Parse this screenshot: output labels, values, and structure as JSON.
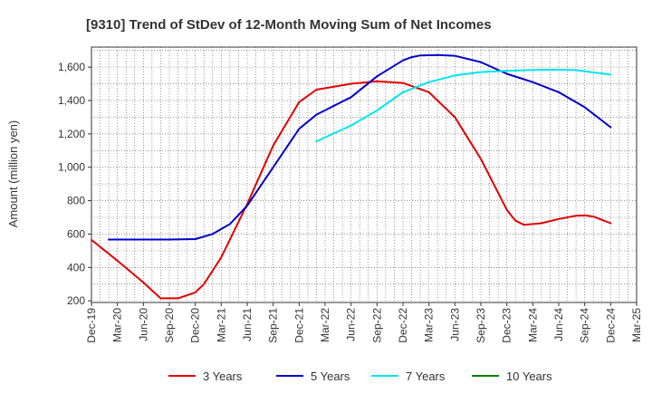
{
  "chart_data": {
    "type": "line",
    "title": "[9310]  Trend of StDev of 12-Month Moving Sum of Net Incomes",
    "ylabel": "Amount (million yen)",
    "xlabel": "",
    "ylim": [
      190,
      1720
    ],
    "yticks": [
      200,
      400,
      600,
      800,
      1000,
      1200,
      1400,
      1600
    ],
    "ytick_labels": [
      "200",
      "400",
      "600",
      "800",
      "1,000",
      "1,200",
      "1,400",
      "1,600"
    ],
    "x_tick_labels": [
      "Dec-19",
      "Mar-20",
      "Jun-20",
      "Sep-20",
      "Dec-20",
      "Mar-21",
      "Jun-21",
      "Sep-21",
      "Dec-21",
      "Mar-22",
      "Jun-22",
      "Sep-22",
      "Dec-22",
      "Mar-23",
      "Jun-23",
      "Sep-23",
      "Dec-23",
      "Mar-24",
      "Jun-24",
      "Sep-24",
      "Dec-24",
      "Mar-25"
    ],
    "grid": true,
    "legend_position": "bottom",
    "series": [
      {
        "name": "3 Years",
        "color": "#e00000",
        "points": [
          [
            "Dec-19",
            565
          ],
          [
            "Mar-20",
            440
          ],
          [
            "Jun-20",
            310
          ],
          [
            "Aug-20",
            215
          ],
          [
            "Oct-20",
            215
          ],
          [
            "Dec-20",
            250
          ],
          [
            "Jan-21",
            300
          ],
          [
            "Mar-21",
            460
          ],
          [
            "Jun-21",
            780
          ],
          [
            "Sep-21",
            1130
          ],
          [
            "Dec-21",
            1390
          ],
          [
            "Feb-22",
            1465
          ],
          [
            "Jun-22",
            1500
          ],
          [
            "Sep-22",
            1515
          ],
          [
            "Dec-22",
            1505
          ],
          [
            "Mar-23",
            1450
          ],
          [
            "Apr-23",
            1400
          ],
          [
            "Jun-23",
            1300
          ],
          [
            "Sep-23",
            1050
          ],
          [
            "Dec-23",
            745
          ],
          [
            "Jan-24",
            680
          ],
          [
            "Feb-24",
            655
          ],
          [
            "Apr-24",
            665
          ],
          [
            "Jun-24",
            690
          ],
          [
            "Aug-24",
            710
          ],
          [
            "Sep-24",
            712
          ],
          [
            "Oct-24",
            705
          ],
          [
            "Dec-24",
            665
          ]
        ]
      },
      {
        "name": "5 Years",
        "color": "#0000cc",
        "points": [
          [
            "Feb-20",
            567
          ],
          [
            "Apr-20",
            567
          ],
          [
            "Jun-20",
            567
          ],
          [
            "Sep-20",
            567
          ],
          [
            "Dec-20",
            570
          ],
          [
            "Feb-21",
            600
          ],
          [
            "Apr-21",
            660
          ],
          [
            "Jun-21",
            770
          ],
          [
            "Sep-21",
            1000
          ],
          [
            "Dec-21",
            1230
          ],
          [
            "Feb-22",
            1315
          ],
          [
            "Jun-22",
            1420
          ],
          [
            "Sep-22",
            1545
          ],
          [
            "Dec-22",
            1640
          ],
          [
            "Jan-23",
            1660
          ],
          [
            "Feb-23",
            1670
          ],
          [
            "Apr-23",
            1672
          ],
          [
            "Jun-23",
            1668
          ],
          [
            "Sep-23",
            1630
          ],
          [
            "Dec-23",
            1560
          ],
          [
            "Mar-24",
            1510
          ],
          [
            "Jun-24",
            1450
          ],
          [
            "Sep-24",
            1360
          ],
          [
            "Dec-24",
            1240
          ]
        ]
      },
      {
        "name": "7 Years",
        "color": "#00e5ee",
        "points": [
          [
            "Feb-22",
            1155
          ],
          [
            "Jun-22",
            1250
          ],
          [
            "Sep-22",
            1340
          ],
          [
            "Dec-22",
            1450
          ],
          [
            "Mar-23",
            1510
          ],
          [
            "Jun-23",
            1550
          ],
          [
            "Sep-23",
            1570
          ],
          [
            "Dec-23",
            1578
          ],
          [
            "Mar-24",
            1583
          ],
          [
            "Jun-24",
            1585
          ],
          [
            "Aug-24",
            1582
          ],
          [
            "Sep-24",
            1575
          ],
          [
            "Dec-24",
            1555
          ]
        ]
      },
      {
        "name": "10 Years",
        "color": "#008000",
        "points": []
      }
    ]
  }
}
